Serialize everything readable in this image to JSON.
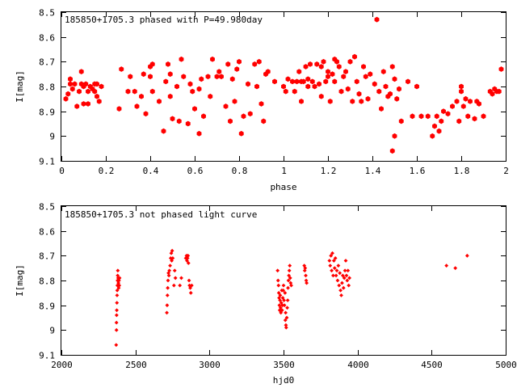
{
  "colors": {
    "marker": "#ff0000",
    "axis": "#000000",
    "background": "#ffffff"
  },
  "chart_data": [
    {
      "type": "scatter",
      "title": "185850+1705.3 phased with P=49.980day",
      "xlabel": "phase",
      "ylabel": "I[mag]",
      "xlim": [
        0,
        2
      ],
      "ylim": [
        9.1,
        8.5
      ],
      "y_inverted": true,
      "grid": false,
      "marker": "filled-hexagon",
      "x_ticks": [
        "0",
        "0.2",
        "0.4",
        "0.6",
        "0.8",
        "1",
        "1.2",
        "1.4",
        "1.6",
        "1.8",
        "2"
      ],
      "y_ticks": [
        "8.5",
        "8.6",
        "8.7",
        "8.8",
        "8.9",
        "9",
        "9.1"
      ],
      "points": [
        [
          0.02,
          8.85
        ],
        [
          0.03,
          8.83
        ],
        [
          0.04,
          8.79
        ],
        [
          0.04,
          8.77
        ],
        [
          0.05,
          8.81
        ],
        [
          0.06,
          8.79
        ],
        [
          0.07,
          8.88
        ],
        [
          0.08,
          8.82
        ],
        [
          0.09,
          8.79
        ],
        [
          0.09,
          8.74
        ],
        [
          0.1,
          8.8
        ],
        [
          0.1,
          8.87
        ],
        [
          0.11,
          8.79
        ],
        [
          0.12,
          8.87
        ],
        [
          0.12,
          8.82
        ],
        [
          0.13,
          8.8
        ],
        [
          0.14,
          8.81
        ],
        [
          0.15,
          8.79
        ],
        [
          0.15,
          8.82
        ],
        [
          0.16,
          8.84
        ],
        [
          0.16,
          8.79
        ],
        [
          0.17,
          8.86
        ],
        [
          0.18,
          8.8
        ],
        [
          0.26,
          8.89
        ],
        [
          0.27,
          8.73
        ],
        [
          0.3,
          8.82
        ],
        [
          0.31,
          8.76
        ],
        [
          0.33,
          8.82
        ],
        [
          0.34,
          8.88
        ],
        [
          0.36,
          8.84
        ],
        [
          0.37,
          8.75
        ],
        [
          0.38,
          8.91
        ],
        [
          0.4,
          8.72
        ],
        [
          0.4,
          8.76
        ],
        [
          0.41,
          8.82
        ],
        [
          0.41,
          8.71
        ],
        [
          0.44,
          8.86
        ],
        [
          0.46,
          8.98
        ],
        [
          0.47,
          8.78
        ],
        [
          0.48,
          8.71
        ],
        [
          0.49,
          8.75
        ],
        [
          0.49,
          8.84
        ],
        [
          0.5,
          8.93
        ],
        [
          0.52,
          8.8
        ],
        [
          0.53,
          8.94
        ],
        [
          0.54,
          8.69
        ],
        [
          0.55,
          8.76
        ],
        [
          0.57,
          8.95
        ],
        [
          0.58,
          8.79
        ],
        [
          0.59,
          8.82
        ],
        [
          0.6,
          8.89
        ],
        [
          0.62,
          8.99
        ],
        [
          0.62,
          8.81
        ],
        [
          0.63,
          8.77
        ],
        [
          0.64,
          8.92
        ],
        [
          0.66,
          8.76
        ],
        [
          0.67,
          8.84
        ],
        [
          0.68,
          8.69
        ],
        [
          0.7,
          8.76
        ],
        [
          0.71,
          8.74
        ],
        [
          0.72,
          8.76
        ],
        [
          0.74,
          8.88
        ],
        [
          0.75,
          8.71
        ],
        [
          0.76,
          8.94
        ],
        [
          0.77,
          8.77
        ],
        [
          0.78,
          8.86
        ],
        [
          0.79,
          8.73
        ],
        [
          0.8,
          8.7
        ],
        [
          0.81,
          8.99
        ],
        [
          0.82,
          8.92
        ],
        [
          0.84,
          8.79
        ],
        [
          0.85,
          8.91
        ],
        [
          0.87,
          8.71
        ],
        [
          0.88,
          8.8
        ],
        [
          0.89,
          8.7
        ],
        [
          0.9,
          8.87
        ],
        [
          0.91,
          8.94
        ],
        [
          0.92,
          8.75
        ],
        [
          0.93,
          8.74
        ],
        [
          0.96,
          8.78
        ],
        [
          1.0,
          8.8
        ],
        [
          1.01,
          8.82
        ],
        [
          1.02,
          8.77
        ],
        [
          1.04,
          8.78
        ],
        [
          1.05,
          8.82
        ],
        [
          1.06,
          8.78
        ],
        [
          1.07,
          8.74
        ],
        [
          1.08,
          8.86
        ],
        [
          1.08,
          8.78
        ],
        [
          1.09,
          8.78
        ],
        [
          1.1,
          8.72
        ],
        [
          1.11,
          8.8
        ],
        [
          1.11,
          8.77
        ],
        [
          1.12,
          8.71
        ],
        [
          1.13,
          8.78
        ],
        [
          1.14,
          8.8
        ],
        [
          1.15,
          8.71
        ],
        [
          1.16,
          8.79
        ],
        [
          1.17,
          8.84
        ],
        [
          1.17,
          8.72
        ],
        [
          1.18,
          8.7
        ],
        [
          1.19,
          8.78
        ],
        [
          1.2,
          8.76
        ],
        [
          1.2,
          8.74
        ],
        [
          1.21,
          8.86
        ],
        [
          1.22,
          8.75
        ],
        [
          1.23,
          8.69
        ],
        [
          1.23,
          8.78
        ],
        [
          1.24,
          8.7
        ],
        [
          1.25,
          8.72
        ],
        [
          1.26,
          8.82
        ],
        [
          1.27,
          8.76
        ],
        [
          1.28,
          8.74
        ],
        [
          1.29,
          8.81
        ],
        [
          1.3,
          8.7
        ],
        [
          1.31,
          8.86
        ],
        [
          1.32,
          8.68
        ],
        [
          1.33,
          8.78
        ],
        [
          1.34,
          8.83
        ],
        [
          1.35,
          8.86
        ],
        [
          1.36,
          8.72
        ],
        [
          1.37,
          8.76
        ],
        [
          1.38,
          8.85
        ],
        [
          1.39,
          8.75
        ],
        [
          1.41,
          8.79
        ],
        [
          1.42,
          8.53
        ],
        [
          1.43,
          8.82
        ],
        [
          1.44,
          8.89
        ],
        [
          1.45,
          8.74
        ],
        [
          1.46,
          8.8
        ],
        [
          1.47,
          8.84
        ],
        [
          1.48,
          8.83
        ],
        [
          1.49,
          9.06
        ],
        [
          1.49,
          8.72
        ],
        [
          1.5,
          9.0
        ],
        [
          1.5,
          8.77
        ],
        [
          1.51,
          8.85
        ],
        [
          1.52,
          8.81
        ],
        [
          1.53,
          8.94
        ],
        [
          1.56,
          8.78
        ],
        [
          1.58,
          8.92
        ],
        [
          1.6,
          8.8
        ],
        [
          1.62,
          8.92
        ],
        [
          1.65,
          8.92
        ],
        [
          1.67,
          9.0
        ],
        [
          1.68,
          8.96
        ],
        [
          1.69,
          8.92
        ],
        [
          1.7,
          8.98
        ],
        [
          1.71,
          8.94
        ],
        [
          1.72,
          8.9
        ],
        [
          1.74,
          8.91
        ],
        [
          1.76,
          8.88
        ],
        [
          1.78,
          8.86
        ],
        [
          1.79,
          8.94
        ],
        [
          1.8,
          8.82
        ],
        [
          1.8,
          8.8
        ],
        [
          1.81,
          8.88
        ],
        [
          1.82,
          8.85
        ],
        [
          1.83,
          8.92
        ],
        [
          1.84,
          8.86
        ],
        [
          1.86,
          8.93
        ],
        [
          1.87,
          8.86
        ],
        [
          1.88,
          8.87
        ],
        [
          1.9,
          8.92
        ],
        [
          1.93,
          8.82
        ],
        [
          1.94,
          8.83
        ],
        [
          1.95,
          8.81
        ],
        [
          1.96,
          8.82
        ],
        [
          1.97,
          8.82
        ],
        [
          1.98,
          8.73
        ]
      ]
    },
    {
      "type": "scatter",
      "title": "185850+1705.3 not phased light curve",
      "xlabel": "hjd0",
      "ylabel": "I[mag]",
      "xlim": [
        2000,
        5000
      ],
      "ylim": [
        9.1,
        8.5
      ],
      "y_inverted": true,
      "grid": false,
      "marker": "filled-diamond",
      "x_ticks": [
        "2000",
        "2500",
        "3000",
        "3500",
        "4000",
        "4500",
        "5000"
      ],
      "y_ticks": [
        "8.5",
        "8.6",
        "8.7",
        "8.8",
        "8.9",
        "9",
        "9.1"
      ],
      "points": [
        [
          2370,
          9.06
        ],
        [
          2372,
          9.0
        ],
        [
          2372,
          8.97
        ],
        [
          2373,
          8.94
        ],
        [
          2374,
          8.92
        ],
        [
          2375,
          8.89
        ],
        [
          2376,
          8.86
        ],
        [
          2377,
          8.84
        ],
        [
          2378,
          8.82
        ],
        [
          2379,
          8.8
        ],
        [
          2380,
          8.78
        ],
        [
          2381,
          8.76
        ],
        [
          2383,
          8.79
        ],
        [
          2385,
          8.81
        ],
        [
          2387,
          8.83
        ],
        [
          2389,
          8.8
        ],
        [
          2391,
          8.82
        ],
        [
          2393,
          8.79
        ],
        [
          2712,
          8.93
        ],
        [
          2714,
          8.9
        ],
        [
          2716,
          8.86
        ],
        [
          2718,
          8.83
        ],
        [
          2720,
          8.8
        ],
        [
          2723,
          8.77
        ],
        [
          2726,
          8.78
        ],
        [
          2729,
          8.76
        ],
        [
          2734,
          8.74
        ],
        [
          2738,
          8.71
        ],
        [
          2742,
          8.69
        ],
        [
          2745,
          8.72
        ],
        [
          2748,
          8.68
        ],
        [
          2752,
          8.71
        ],
        [
          2760,
          8.82
        ],
        [
          2765,
          8.76
        ],
        [
          2770,
          8.79
        ],
        [
          2800,
          8.82
        ],
        [
          2810,
          8.79
        ],
        [
          2840,
          8.71
        ],
        [
          2845,
          8.7
        ],
        [
          2848,
          8.72
        ],
        [
          2852,
          8.71
        ],
        [
          2855,
          8.7
        ],
        [
          2858,
          8.73
        ],
        [
          2862,
          8.8
        ],
        [
          2865,
          8.82
        ],
        [
          2870,
          8.83
        ],
        [
          2874,
          8.85
        ],
        [
          2880,
          8.82
        ],
        [
          3460,
          8.76
        ],
        [
          3463,
          8.8
        ],
        [
          3466,
          8.82
        ],
        [
          3468,
          8.85
        ],
        [
          3470,
          8.87
        ],
        [
          3472,
          8.9
        ],
        [
          3474,
          8.92
        ],
        [
          3476,
          8.88
        ],
        [
          3478,
          8.86
        ],
        [
          3480,
          8.91
        ],
        [
          3482,
          8.93
        ],
        [
          3485,
          8.89
        ],
        [
          3488,
          8.84
        ],
        [
          3490,
          8.92
        ],
        [
          3492,
          8.9
        ],
        [
          3495,
          8.87
        ],
        [
          3498,
          8.84
        ],
        [
          3500,
          8.82
        ],
        [
          3503,
          8.88
        ],
        [
          3506,
          8.9
        ],
        [
          3510,
          8.85
        ],
        [
          3512,
          8.96
        ],
        [
          3514,
          8.93
        ],
        [
          3516,
          8.98
        ],
        [
          3518,
          8.99
        ],
        [
          3522,
          8.95
        ],
        [
          3525,
          8.91
        ],
        [
          3528,
          8.88
        ],
        [
          3530,
          8.83
        ],
        [
          3533,
          8.8
        ],
        [
          3536,
          8.78
        ],
        [
          3539,
          8.76
        ],
        [
          3542,
          8.74
        ],
        [
          3545,
          8.79
        ],
        [
          3548,
          8.81
        ],
        [
          3552,
          8.82
        ],
        [
          3640,
          8.74
        ],
        [
          3643,
          8.76
        ],
        [
          3646,
          8.75
        ],
        [
          3650,
          8.78
        ],
        [
          3653,
          8.8
        ],
        [
          3656,
          8.81
        ],
        [
          3810,
          8.72
        ],
        [
          3815,
          8.74
        ],
        [
          3820,
          8.7
        ],
        [
          3825,
          8.76
        ],
        [
          3830,
          8.69
        ],
        [
          3835,
          8.78
        ],
        [
          3840,
          8.72
        ],
        [
          3845,
          8.75
        ],
        [
          3850,
          8.71
        ],
        [
          3855,
          8.78
        ],
        [
          3860,
          8.76
        ],
        [
          3865,
          8.8
        ],
        [
          3870,
          8.74
        ],
        [
          3875,
          8.82
        ],
        [
          3880,
          8.77
        ],
        [
          3885,
          8.84
        ],
        [
          3890,
          8.86
        ],
        [
          3895,
          8.81
        ],
        [
          3900,
          8.78
        ],
        [
          3905,
          8.83
        ],
        [
          3910,
          8.79
        ],
        [
          3915,
          8.76
        ],
        [
          3920,
          8.72
        ],
        [
          3925,
          8.78
        ],
        [
          3930,
          8.8
        ],
        [
          3935,
          8.76
        ],
        [
          3940,
          8.82
        ],
        [
          3945,
          8.79
        ],
        [
          4600,
          8.74
        ],
        [
          4660,
          8.75
        ],
        [
          4740,
          8.7
        ]
      ]
    }
  ]
}
